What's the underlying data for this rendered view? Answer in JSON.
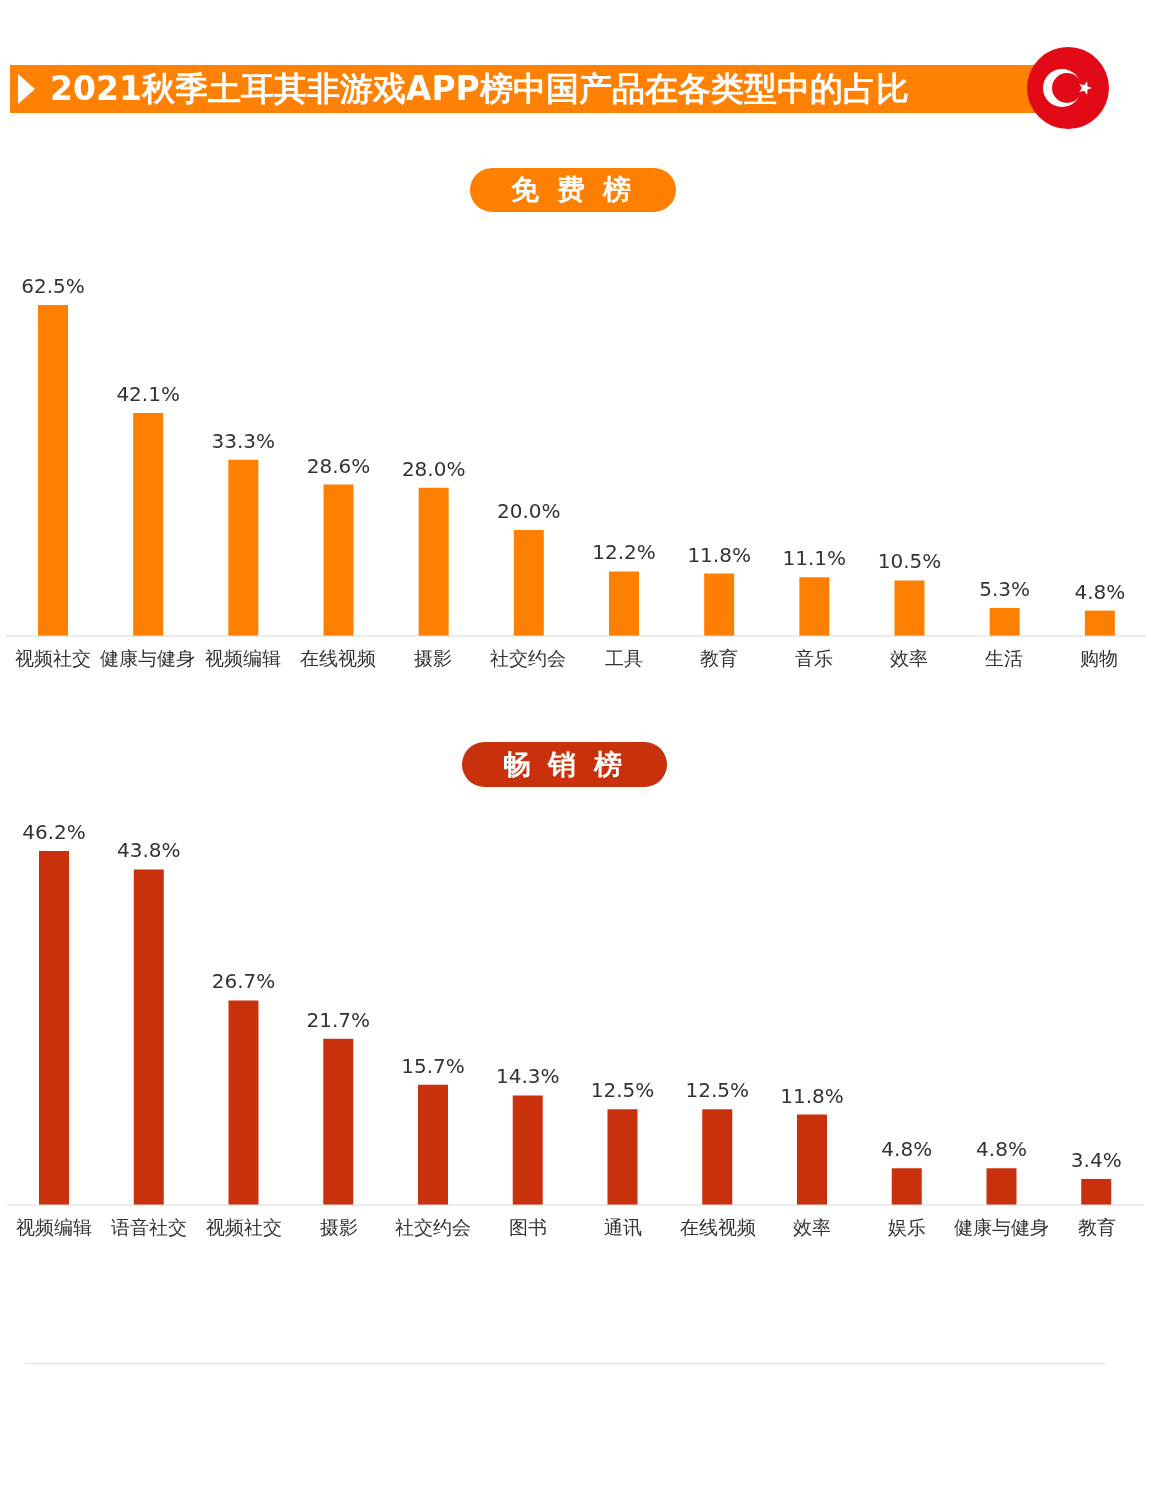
{
  "chart_data": [
    {
      "type": "bar",
      "title": "2021秋季土耳其非游戏APP榜中国产品在各类型中的占比",
      "subtitle": "免 费 榜",
      "categories": [
        "视频社交",
        "健康与健身",
        "视频编辑",
        "在线视频",
        "摄影",
        "社交约会",
        "工具",
        "教育",
        "音乐",
        "效率",
        "生活",
        "购物"
      ],
      "values": [
        62.5,
        42.1,
        33.3,
        28.6,
        28.0,
        20.0,
        12.2,
        11.8,
        11.1,
        10.5,
        5.3,
        4.8
      ],
      "value_labels": [
        "62.5%",
        "42.1%",
        "33.3%",
        "28.6%",
        "28.0%",
        "20.0%",
        "12.2%",
        "11.8%",
        "11.1%",
        "10.5%",
        "5.3%",
        "4.8%"
      ],
      "color": "#ff8000",
      "tick_labels": "x"
    },
    {
      "type": "bar",
      "title": "畅 销 榜",
      "categories": [
        "视频编辑",
        "语音社交",
        "视频社交",
        "摄影",
        "社交约会",
        "图书",
        "通讯",
        "在线视频",
        "效率",
        "娱乐",
        "健康与健身",
        "教育"
      ],
      "values": [
        46.2,
        43.8,
        26.7,
        21.7,
        15.7,
        14.3,
        12.5,
        12.5,
        11.8,
        4.8,
        4.8,
        3.4
      ],
      "value_labels": [
        "46.2%",
        "43.8%",
        "26.7%",
        "21.7%",
        "15.7%",
        "14.3%",
        "12.5%",
        "12.5%",
        "11.8%",
        "4.8%",
        "4.8%",
        "3.4%"
      ],
      "color": "#c8310b",
      "tick_labels": "x"
    }
  ]
}
